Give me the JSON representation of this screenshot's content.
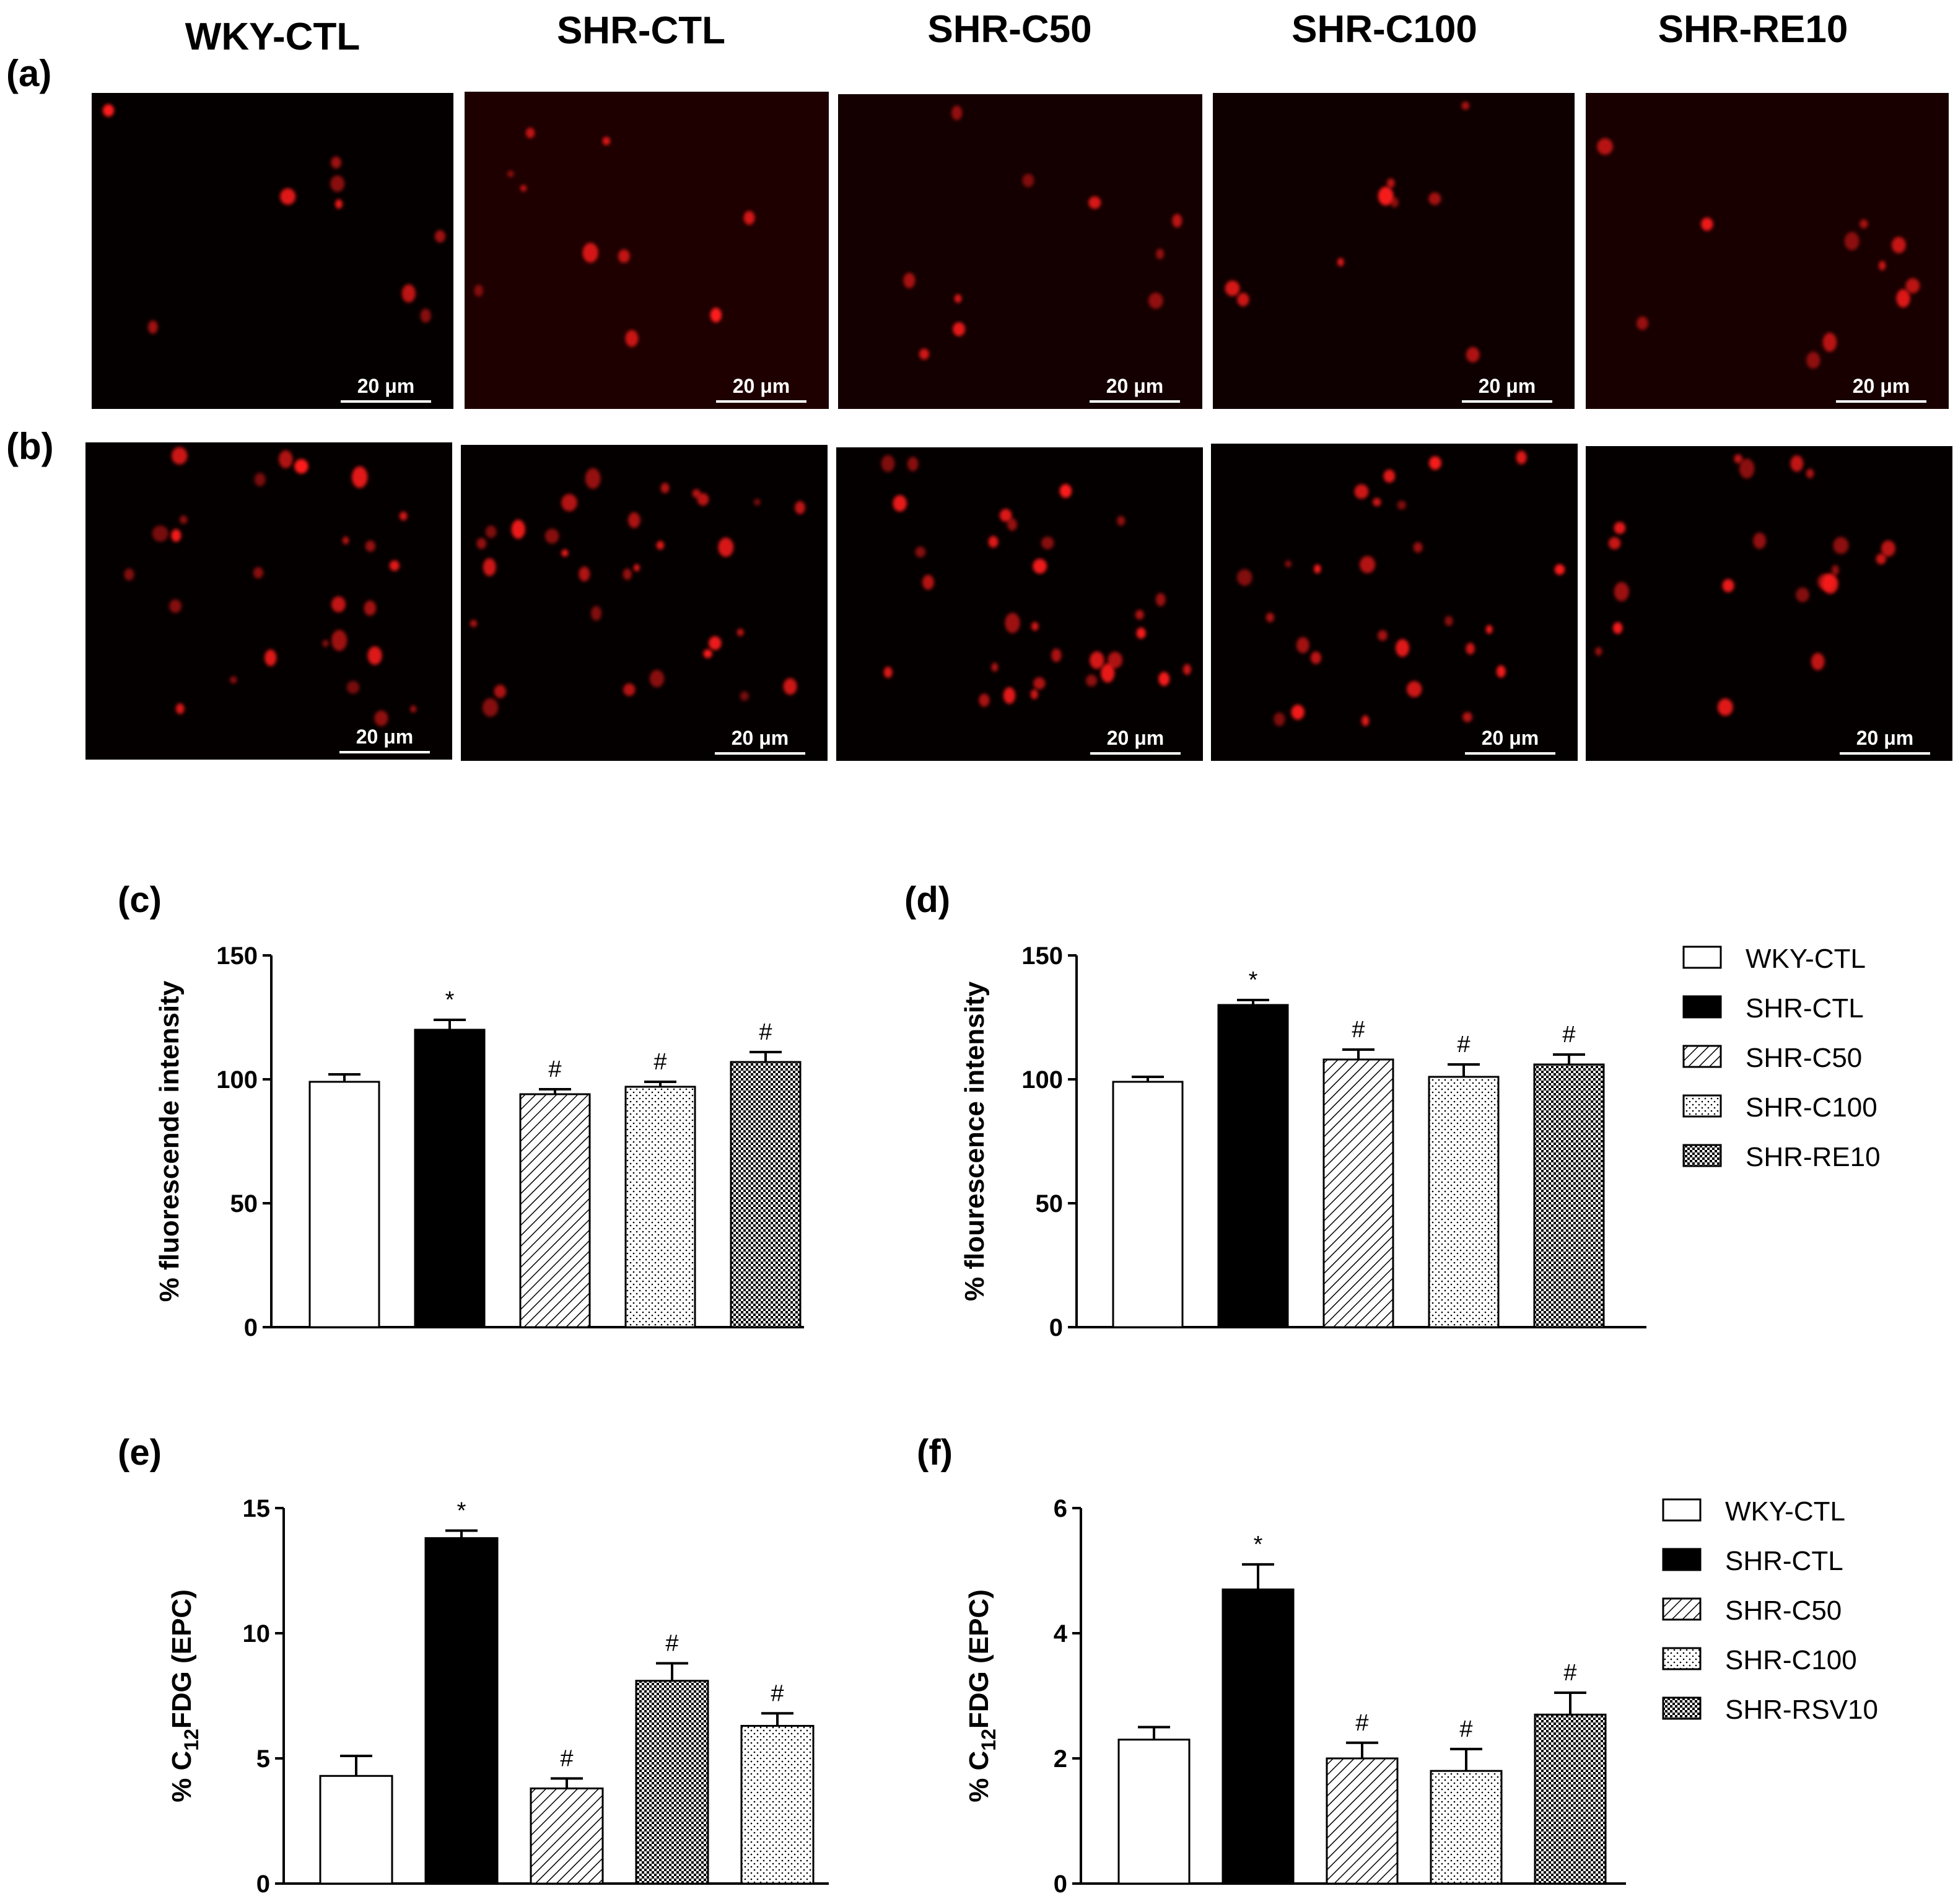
{
  "columns": [
    "WKY-CTL",
    "SHR-CTL",
    "SHR-C50",
    "SHR-C100",
    "SHR-RE10"
  ],
  "rows": [
    {
      "label": "(a)",
      "scale_bars": [
        "20 μm",
        "20 μm",
        "20 μm",
        "20 μm",
        "20 μm"
      ]
    },
    {
      "label": "(b)",
      "scale_bars": [
        "20 μm",
        "20 μm",
        "20 μm",
        "20 μm",
        "20 μm"
      ]
    }
  ],
  "colors": {
    "image_bg": "#050000",
    "cell": "#ff1a1a"
  },
  "chart_data": [
    {
      "panel": "(c)",
      "type": "bar",
      "ylabel": "% fluorescende intensity",
      "ylim": [
        0,
        150
      ],
      "yticks": [
        0,
        50,
        100,
        150
      ],
      "categories": [
        "WKY-CTL",
        "SHR-CTL",
        "SHR-C50",
        "SHR-C100",
        "SHR-RE10"
      ],
      "values": [
        99,
        120,
        94,
        97,
        107
      ],
      "errors": [
        3,
        4,
        2,
        2,
        4
      ],
      "annotations": [
        "",
        "*",
        "#",
        "#",
        "#"
      ],
      "patterns": [
        "white",
        "black",
        "hatch",
        "dots",
        "checker"
      ]
    },
    {
      "panel": "(d)",
      "type": "bar",
      "ylabel": "% flourescence intensity",
      "ylim": [
        0,
        150
      ],
      "yticks": [
        0,
        50,
        100,
        150
      ],
      "categories": [
        "WKY-CTL",
        "SHR-CTL",
        "SHR-C50",
        "SHR-C100",
        "SHR-RE10"
      ],
      "values": [
        99,
        130,
        108,
        101,
        106
      ],
      "errors": [
        2,
        2,
        4,
        5,
        4
      ],
      "annotations": [
        "",
        "*",
        "#",
        "#",
        "#"
      ],
      "patterns": [
        "white",
        "black",
        "hatch",
        "dots",
        "checker"
      ],
      "legend": [
        "WKY-CTL",
        "SHR-CTL",
        "SHR-C50",
        "SHR-C100",
        "SHR-RE10"
      ]
    },
    {
      "panel": "(e)",
      "type": "bar",
      "ylabel": "% C12FDG (EPC)",
      "ylim": [
        0,
        15
      ],
      "yticks": [
        0,
        5,
        10,
        15
      ],
      "categories": [
        "WKY-CTL",
        "SHR-CTL",
        "SHR-C50",
        "SHR-RSV10",
        "SHR-C100"
      ],
      "values": [
        4.3,
        13.8,
        3.8,
        8.1,
        6.3
      ],
      "errors": [
        0.8,
        0.3,
        0.4,
        0.7,
        0.5
      ],
      "annotations": [
        "",
        "*",
        "#",
        "#",
        "#"
      ],
      "patterns": [
        "white",
        "black",
        "hatch",
        "checker",
        "dots"
      ]
    },
    {
      "panel": "(f)",
      "type": "bar",
      "ylabel": "% C12FDG (EPC)",
      "ylim": [
        0,
        6
      ],
      "yticks": [
        0,
        2,
        4,
        6
      ],
      "categories": [
        "WKY-CTL",
        "SHR-CTL",
        "SHR-C50",
        "SHR-C100",
        "SHR-RSV10"
      ],
      "values": [
        2.3,
        4.7,
        2.0,
        1.8,
        2.7
      ],
      "errors": [
        0.2,
        0.4,
        0.25,
        0.35,
        0.35
      ],
      "annotations": [
        "",
        "*",
        "#",
        "#",
        "#"
      ],
      "patterns": [
        "white",
        "black",
        "hatch",
        "dots",
        "checker"
      ],
      "legend": [
        "WKY-CTL",
        "SHR-CTL",
        "SHR-C50",
        "SHR-C100",
        "SHR-RSV10"
      ]
    }
  ]
}
